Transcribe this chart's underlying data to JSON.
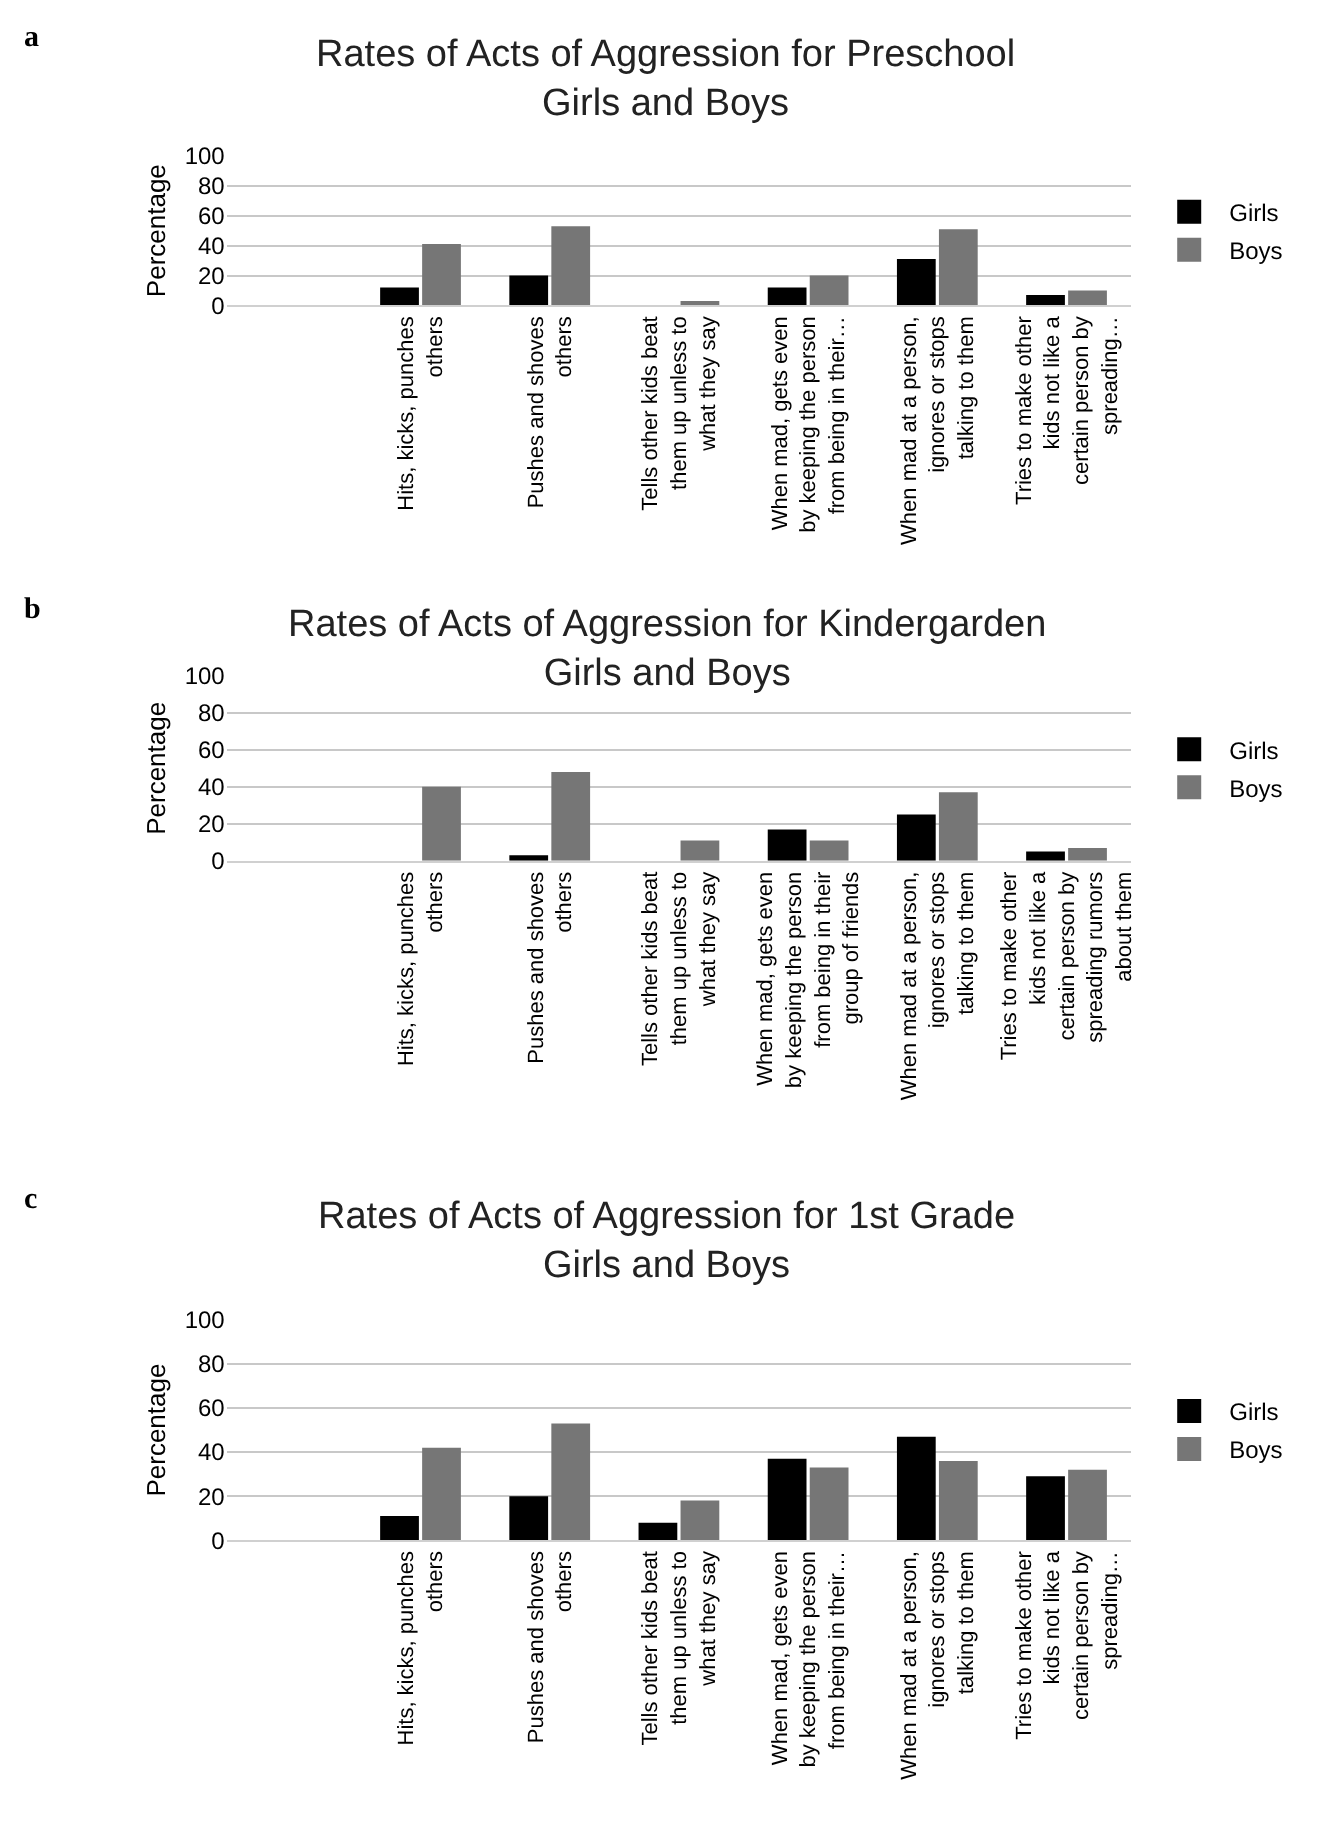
{
  "chart_data": [
    {
      "type": "bar",
      "title": "Rates of Acts of Aggression for Preschool Girls and Boys",
      "ylabel": "Percentage",
      "annotations": [
        "a"
      ],
      "categories": [
        null,
        "Hits, kicks, punches others",
        "Pushes and shoves others",
        "Tells other kids beat them up unless to what they say",
        "When mad, gets even by keeping the person from being in their…",
        "When mad at a person, ignores or stops talking to them",
        "Tries to make other kids not like a certain person by spreading…"
      ],
      "series": [
        {
          "name": "Girls",
          "color": "#000000",
          "values": [
            null,
            12,
            20,
            0,
            12,
            31,
            7
          ]
        },
        {
          "name": "Boys",
          "color": "#767676",
          "values": [
            null,
            41,
            53,
            3,
            20,
            51,
            10
          ]
        }
      ],
      "ylim": [
        0,
        100
      ],
      "yticks": [
        0,
        20,
        40,
        60,
        80,
        100
      ],
      "grid": "y",
      "legend": "right"
    },
    {
      "type": "bar",
      "title": "Rates of Acts of Aggression for Kindergarden Girls and Boys",
      "ylabel": "Percentage",
      "annotations": [
        "b"
      ],
      "categories": [
        null,
        "Hits, kicks, punches others",
        "Pushes and shoves others",
        "Tells other kids beat them up unless to what they say",
        "When mad, gets even by keeping the person from being in their group of friends",
        "When mad at a person, ignores or stops talking to them",
        "Tries to make other kids not like a certain person by spreading rumors about them"
      ],
      "series": [
        {
          "name": "Girls",
          "color": "#000000",
          "values": [
            null,
            0,
            3,
            0,
            17,
            25,
            5
          ]
        },
        {
          "name": "Boys",
          "color": "#767676",
          "values": [
            null,
            40,
            48,
            11,
            11,
            37,
            7
          ]
        }
      ],
      "ylim": [
        0,
        100
      ],
      "yticks": [
        0,
        20,
        40,
        60,
        80,
        100
      ],
      "grid": "y",
      "legend": "right"
    },
    {
      "type": "bar",
      "title": "Rates of Acts of Aggression for 1st Grade Girls and Boys",
      "ylabel": "Percentage",
      "annotations": [
        "c"
      ],
      "categories": [
        null,
        "Hits, kicks, punches others",
        "Pushes and shoves others",
        "Tells other kids beat them up unless to what they say",
        "When mad, gets even by keeping the person from being in their…",
        "When mad at a person, ignores or stops talking to them",
        "Tries to make other kids not like a certain person by spreading…"
      ],
      "series": [
        {
          "name": "Girls",
          "color": "#000000",
          "values": [
            null,
            11,
            20,
            8,
            37,
            47,
            29
          ]
        },
        {
          "name": "Boys",
          "color": "#767676",
          "values": [
            null,
            42,
            53,
            18,
            33,
            36,
            32
          ]
        }
      ],
      "ylim": [
        0,
        100
      ],
      "yticks": [
        0,
        20,
        40,
        60,
        80,
        100
      ],
      "grid": "y",
      "legend": "right"
    }
  ]
}
